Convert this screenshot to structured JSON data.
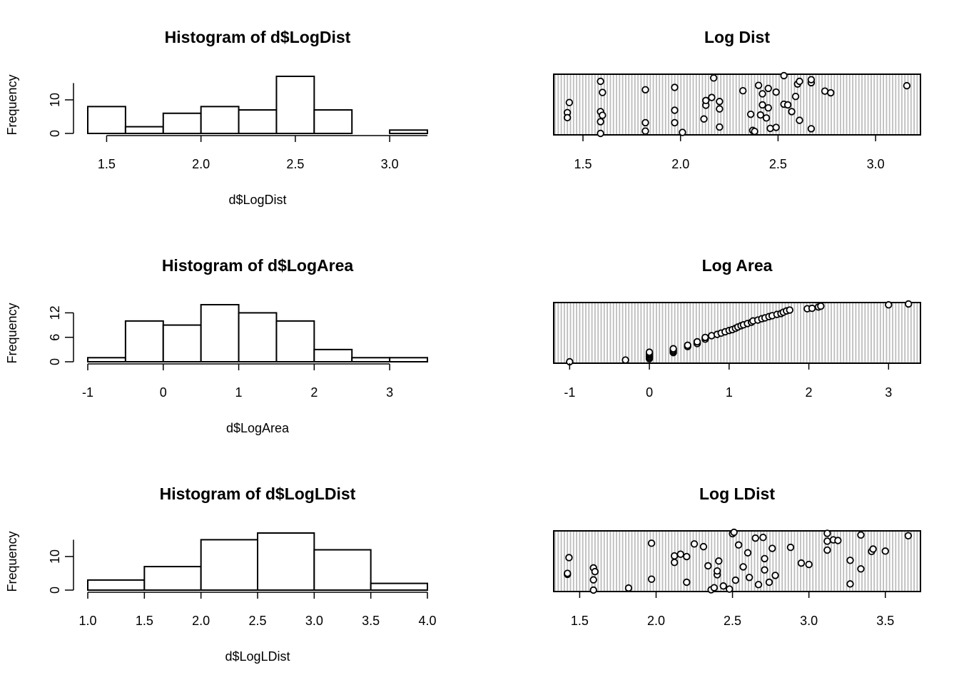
{
  "chart_data": [
    {
      "type": "bar",
      "title": "Histogram of d$LogDist",
      "xlabel": "d$LogDist",
      "ylabel": "Frequency",
      "xlim": [
        1.4,
        3.2
      ],
      "ylim": [
        0,
        17
      ],
      "xticks": [
        1.5,
        2.0,
        2.5,
        3.0
      ],
      "xtick_labels": [
        "1.5",
        "2.0",
        "2.5",
        "3.0"
      ],
      "yticks": [
        0,
        10
      ],
      "ytick_labels": [
        "0",
        "10"
      ],
      "xaxis_range": [
        1.5,
        3.2
      ],
      "yaxis_range": [
        0,
        15
      ],
      "bins": [
        {
          "from": 1.4,
          "to": 1.6,
          "count": 8
        },
        {
          "from": 1.6,
          "to": 1.8,
          "count": 2
        },
        {
          "from": 1.8,
          "to": 2.0,
          "count": 6
        },
        {
          "from": 2.0,
          "to": 2.2,
          "count": 8
        },
        {
          "from": 2.2,
          "to": 2.4,
          "count": 7
        },
        {
          "from": 2.4,
          "to": 2.6,
          "count": 17
        },
        {
          "from": 2.6,
          "to": 2.8,
          "count": 7
        },
        {
          "from": 2.8,
          "to": 3.0,
          "count": 0
        },
        {
          "from": 3.0,
          "to": 3.2,
          "count": 1
        }
      ]
    },
    {
      "type": "scatter",
      "title": "Log Dist",
      "xlim": [
        1.35,
        3.23
      ],
      "xticks": [
        1.5,
        2.0,
        2.5,
        3.0
      ],
      "xtick_labels": [
        "1.5",
        "2.0",
        "2.5",
        "3.0"
      ],
      "stripes": true,
      "points": [
        [
          1.42,
          6.5
        ],
        [
          1.42,
          5.0
        ],
        [
          1.43,
          9.5
        ],
        [
          1.59,
          15.8
        ],
        [
          1.59,
          6.8
        ],
        [
          1.59,
          0.3
        ],
        [
          1.59,
          3.8
        ],
        [
          1.6,
          12.5
        ],
        [
          1.6,
          5.7
        ],
        [
          1.82,
          13.3
        ],
        [
          1.82,
          3.5
        ],
        [
          1.82,
          1.0
        ],
        [
          1.97,
          14.0
        ],
        [
          1.97,
          7.2
        ],
        [
          1.97,
          3.5
        ],
        [
          2.01,
          0.6
        ],
        [
          2.12,
          4.6
        ],
        [
          2.13,
          8.7
        ],
        [
          2.13,
          10.1
        ],
        [
          2.16,
          11.0
        ],
        [
          2.17,
          16.8
        ],
        [
          2.2,
          7.6
        ],
        [
          2.2,
          9.8
        ],
        [
          2.2,
          2.2
        ],
        [
          2.32,
          13.0
        ],
        [
          2.36,
          6.0
        ],
        [
          2.37,
          1.2
        ],
        [
          2.38,
          0.9
        ],
        [
          2.4,
          14.6
        ],
        [
          2.41,
          5.8
        ],
        [
          2.42,
          8.8
        ],
        [
          2.42,
          12.1
        ],
        [
          2.44,
          4.9
        ],
        [
          2.45,
          13.7
        ],
        [
          2.45,
          7.9
        ],
        [
          2.46,
          1.8
        ],
        [
          2.49,
          12.6
        ],
        [
          2.49,
          2.1
        ],
        [
          2.53,
          17.5
        ],
        [
          2.53,
          9.0
        ],
        [
          2.55,
          8.8
        ],
        [
          2.57,
          6.8
        ],
        [
          2.59,
          11.3
        ],
        [
          2.6,
          15.0
        ],
        [
          2.61,
          4.2
        ],
        [
          2.61,
          15.8
        ],
        [
          2.67,
          15.4
        ],
        [
          2.67,
          16.3
        ],
        [
          2.67,
          1.7
        ],
        [
          2.74,
          12.9
        ],
        [
          2.77,
          12.4
        ],
        [
          3.16,
          14.5
        ]
      ]
    },
    {
      "type": "bar",
      "title": "Histogram of d$LogArea",
      "xlabel": "d$LogArea",
      "ylabel": "Frequency",
      "xlim": [
        -1,
        3.5
      ],
      "ylim": [
        0,
        14
      ],
      "xticks": [
        -1,
        0,
        1,
        2,
        3
      ],
      "xtick_labels": [
        "-1",
        "0",
        "1",
        "2",
        "3"
      ],
      "yticks": [
        0,
        6,
        12
      ],
      "ytick_labels": [
        "0",
        "6",
        "12"
      ],
      "xaxis_range": [
        -1,
        3
      ],
      "yaxis_range": [
        0,
        12
      ],
      "bins": [
        {
          "from": -1.0,
          "to": -0.5,
          "count": 1
        },
        {
          "from": -0.5,
          "to": 0.0,
          "count": 10
        },
        {
          "from": 0.0,
          "to": 0.5,
          "count": 9
        },
        {
          "from": 0.5,
          "to": 1.0,
          "count": 14
        },
        {
          "from": 1.0,
          "to": 1.5,
          "count": 12
        },
        {
          "from": 1.5,
          "to": 2.0,
          "count": 10
        },
        {
          "from": 2.0,
          "to": 2.5,
          "count": 3
        },
        {
          "from": 2.5,
          "to": 3.0,
          "count": 1
        },
        {
          "from": 3.0,
          "to": 3.5,
          "count": 1
        }
      ]
    },
    {
      "type": "scatter",
      "title": "Log Area",
      "xlim": [
        -1.2,
        3.4
      ],
      "xticks": [
        -1,
        0,
        1,
        2,
        3
      ],
      "xtick_labels": [
        "-1",
        "0",
        "1",
        "2",
        "3"
      ],
      "stripes": true,
      "points": [
        [
          -1.0,
          0.0
        ],
        [
          -0.3,
          0.4
        ],
        [
          0.0,
          0.7
        ],
        [
          0.0,
          1.0
        ],
        [
          0.0,
          1.3
        ],
        [
          0.0,
          1.6
        ],
        [
          0.0,
          1.9
        ],
        [
          0.0,
          2.2
        ],
        [
          0.3,
          2.1
        ],
        [
          0.3,
          2.4
        ],
        [
          0.3,
          2.7
        ],
        [
          0.3,
          3.0
        ],
        [
          0.48,
          3.5
        ],
        [
          0.48,
          3.8
        ],
        [
          0.6,
          4.2
        ],
        [
          0.6,
          4.6
        ],
        [
          0.7,
          5.2
        ],
        [
          0.7,
          5.6
        ],
        [
          0.78,
          6.0
        ],
        [
          0.85,
          6.3
        ],
        [
          0.9,
          6.6
        ],
        [
          0.95,
          6.9
        ],
        [
          1.0,
          7.2
        ],
        [
          1.04,
          7.4
        ],
        [
          1.08,
          7.7
        ],
        [
          1.11,
          8.0
        ],
        [
          1.15,
          8.3
        ],
        [
          1.18,
          8.5
        ],
        [
          1.23,
          8.8
        ],
        [
          1.28,
          9.1
        ],
        [
          1.3,
          9.4
        ],
        [
          1.36,
          9.6
        ],
        [
          1.41,
          9.9
        ],
        [
          1.45,
          10.1
        ],
        [
          1.5,
          10.4
        ],
        [
          1.54,
          10.6
        ],
        [
          1.6,
          10.9
        ],
        [
          1.65,
          11.1
        ],
        [
          1.68,
          11.4
        ],
        [
          1.72,
          11.7
        ],
        [
          1.76,
          11.9
        ],
        [
          1.98,
          12.2
        ],
        [
          2.04,
          12.3
        ],
        [
          2.12,
          12.6
        ],
        [
          2.15,
          12.8
        ],
        [
          3.0,
          13.1
        ],
        [
          3.25,
          13.3
        ]
      ]
    },
    {
      "type": "bar",
      "title": "Histogram of d$LogLDist",
      "xlabel": "d$LogLDist",
      "ylabel": "Frequency",
      "xlim": [
        1.0,
        4.0
      ],
      "ylim": [
        0,
        17
      ],
      "xticks": [
        1.0,
        1.5,
        2.0,
        2.5,
        3.0,
        3.5,
        4.0
      ],
      "xtick_labels": [
        "1.0",
        "1.5",
        "2.0",
        "2.5",
        "3.0",
        "3.5",
        "4.0"
      ],
      "yticks": [
        0,
        10
      ],
      "ytick_labels": [
        "0",
        "10"
      ],
      "xaxis_range": [
        1.0,
        4.0
      ],
      "yaxis_range": [
        0,
        15
      ],
      "bins": [
        {
          "from": 1.0,
          "to": 1.5,
          "count": 3
        },
        {
          "from": 1.5,
          "to": 2.0,
          "count": 7
        },
        {
          "from": 2.0,
          "to": 2.5,
          "count": 15
        },
        {
          "from": 2.5,
          "to": 3.0,
          "count": 17
        },
        {
          "from": 3.0,
          "to": 3.5,
          "count": 12
        },
        {
          "from": 3.5,
          "to": 4.0,
          "count": 2
        }
      ]
    },
    {
      "type": "scatter",
      "title": "Log LDist",
      "xlim": [
        1.33,
        3.73
      ],
      "xticks": [
        1.5,
        2.0,
        2.5,
        3.0,
        3.5
      ],
      "xtick_labels": [
        "1.5",
        "2.0",
        "2.5",
        "3.0",
        "3.5"
      ],
      "stripes": true,
      "points": [
        [
          1.42,
          4.9
        ],
        [
          1.42,
          5.2
        ],
        [
          1.43,
          9.8
        ],
        [
          1.59,
          6.8
        ],
        [
          1.59,
          3.3
        ],
        [
          1.59,
          0.3
        ],
        [
          1.6,
          5.7
        ],
        [
          1.82,
          0.9
        ],
        [
          1.97,
          14.0
        ],
        [
          1.97,
          3.5
        ],
        [
          2.12,
          8.4
        ],
        [
          2.12,
          10.3
        ],
        [
          2.16,
          10.8
        ],
        [
          2.2,
          10.1
        ],
        [
          2.2,
          2.6
        ],
        [
          2.25,
          13.8
        ],
        [
          2.31,
          13.0
        ],
        [
          2.34,
          7.4
        ],
        [
          2.36,
          0.4
        ],
        [
          2.38,
          1.0
        ],
        [
          2.4,
          4.8
        ],
        [
          2.4,
          5.9
        ],
        [
          2.41,
          8.8
        ],
        [
          2.44,
          1.5
        ],
        [
          2.48,
          0.6
        ],
        [
          2.5,
          16.8
        ],
        [
          2.51,
          17.2
        ],
        [
          2.52,
          3.2
        ],
        [
          2.54,
          13.5
        ],
        [
          2.57,
          7.1
        ],
        [
          2.6,
          11.2
        ],
        [
          2.61,
          4.0
        ],
        [
          2.65,
          15.5
        ],
        [
          2.67,
          1.9
        ],
        [
          2.7,
          15.7
        ],
        [
          2.71,
          9.5
        ],
        [
          2.71,
          6.2
        ],
        [
          2.74,
          2.6
        ],
        [
          2.76,
          12.5
        ],
        [
          2.78,
          4.6
        ],
        [
          2.88,
          12.8
        ],
        [
          2.95,
          8.2
        ],
        [
          3.0,
          7.8
        ],
        [
          3.12,
          16.9
        ],
        [
          3.12,
          14.6
        ],
        [
          3.12,
          12.0
        ],
        [
          3.16,
          15.0
        ],
        [
          3.19,
          14.8
        ],
        [
          3.27,
          9.0
        ],
        [
          3.27,
          2.1
        ],
        [
          3.34,
          16.4
        ],
        [
          3.34,
          6.5
        ],
        [
          3.41,
          11.6
        ],
        [
          3.42,
          12.3
        ],
        [
          3.5,
          11.7
        ],
        [
          3.65,
          16.2
        ]
      ]
    }
  ]
}
